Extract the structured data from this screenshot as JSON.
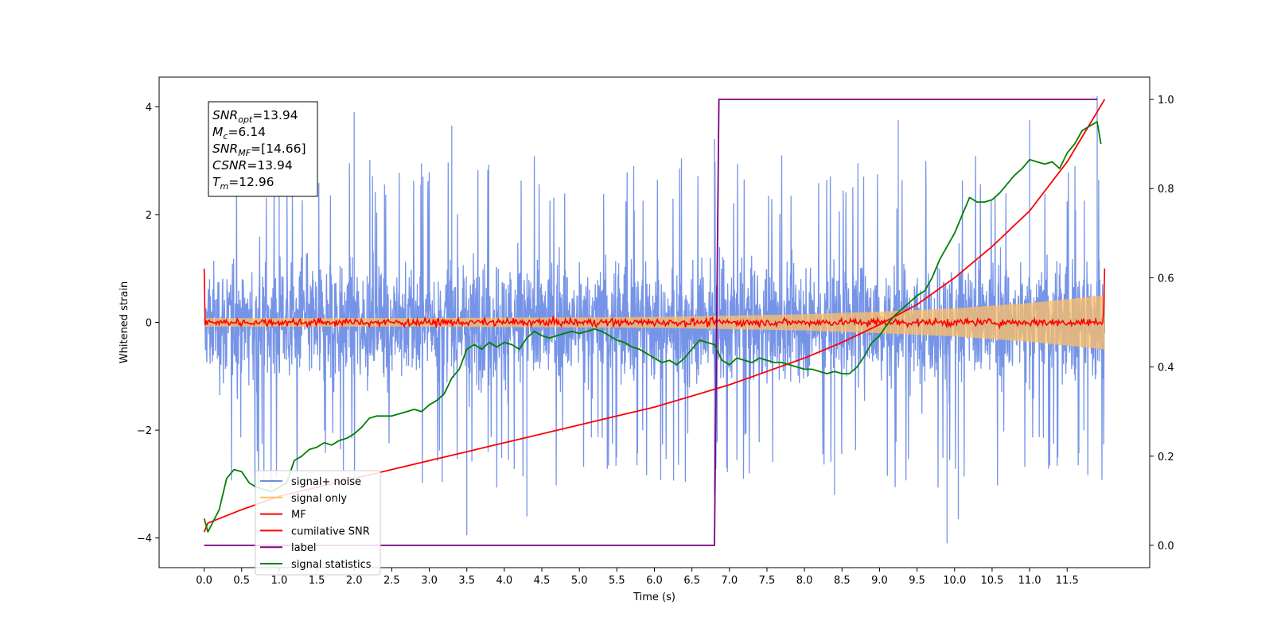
{
  "chart_data": {
    "type": "line",
    "title": "",
    "xlabel": "Time (s)",
    "ylabel": "Whitened strain",
    "y2label": "",
    "xlim": [
      -0.6,
      12.6
    ],
    "ylim": [
      -4.55,
      4.55
    ],
    "y2lim": [
      -0.05,
      1.05
    ],
    "xticks": [
      0.0,
      0.5,
      1.0,
      1.5,
      2.0,
      2.5,
      3.0,
      3.5,
      4.0,
      4.5,
      5.0,
      5.5,
      6.0,
      6.5,
      7.0,
      7.5,
      8.0,
      8.5,
      9.0,
      9.5,
      10.0,
      10.5,
      11.0,
      11.5
    ],
    "xtick_labels": [
      "0.0",
      "0.5",
      "1.0",
      "1.5",
      "2.0",
      "2.5",
      "3.0",
      "3.5",
      "4.0",
      "4.5",
      "5.0",
      "5.5",
      "6.0",
      "6.5",
      "7.0",
      "7.5",
      "8.0",
      "8.5",
      "9.0",
      "9.5",
      "10.0",
      "10.5",
      "11.0",
      "11.5"
    ],
    "yticks": [
      -4,
      -2,
      0,
      2,
      4
    ],
    "ytick_labels": [
      "−4",
      "−2",
      "0",
      "2",
      "4"
    ],
    "y2ticks": [
      0.0,
      0.2,
      0.4,
      0.6,
      0.8,
      1.0
    ],
    "y2tick_labels": [
      "0.0",
      "0.2",
      "0.4",
      "0.6",
      "0.8",
      "1.0"
    ],
    "grid": false,
    "legend_position": "lower-left",
    "annotation": {
      "lines": [
        {
          "sym": "SNR",
          "sub": "opt",
          "value": "=13.94"
        },
        {
          "sym": "M",
          "sub": "c",
          "value": "=6.14"
        },
        {
          "sym": "SNR",
          "sub": "MF",
          "value": "=[14.66]"
        },
        {
          "sym": "CSNR",
          "sub": "",
          "value": "=13.94"
        },
        {
          "sym": "T",
          "sub": "m",
          "value": "=12.96"
        }
      ]
    },
    "series": [
      {
        "name": "signal+ noise",
        "axis": "left",
        "color": "#6f8ee6",
        "kind": "noise-band",
        "x_range": [
          0.0,
          12.0
        ],
        "band": [
          -1.5,
          1.6
        ],
        "peaks_upper": [
          [
            1.0,
            3.3
          ],
          [
            2.0,
            3.9
          ],
          [
            3.3,
            3.65
          ],
          [
            6.8,
            3.4
          ],
          [
            9.25,
            3.75
          ],
          [
            11.0,
            3.75
          ],
          [
            11.9,
            4.2
          ]
        ],
        "peaks_lower": [
          [
            3.5,
            -3.95
          ],
          [
            4.3,
            -3.6
          ],
          [
            6.8,
            -3.2
          ],
          [
            9.9,
            -4.1
          ],
          [
            10.05,
            -3.65
          ],
          [
            8.4,
            -3.2
          ]
        ]
      },
      {
        "name": "signal only",
        "axis": "left",
        "color": "#ffbf66",
        "kind": "chirp-envelope",
        "x_range": [
          0.0,
          12.0
        ],
        "amplitude": [
          [
            0.0,
            0.08
          ],
          [
            3.0,
            0.08
          ],
          [
            6.0,
            0.1
          ],
          [
            8.0,
            0.15
          ],
          [
            9.0,
            0.2
          ],
          [
            10.0,
            0.26
          ],
          [
            11.0,
            0.36
          ],
          [
            12.0,
            0.5
          ]
        ]
      },
      {
        "name": "MF",
        "axis": "left",
        "color": "#ff0000",
        "kind": "noisy-flat",
        "x_range": [
          0.0,
          12.0
        ],
        "center": 0.0,
        "jitter": 0.07,
        "spikes": [
          [
            0.0,
            1.0
          ],
          [
            12.0,
            1.0
          ]
        ]
      },
      {
        "name": "cumilative SNR",
        "axis": "right",
        "color": "#ff0000",
        "x": [
          0.0,
          0.05,
          0.5,
          1.0,
          1.5,
          2.0,
          2.5,
          3.0,
          3.5,
          4.0,
          4.5,
          5.0,
          5.5,
          6.0,
          6.5,
          7.0,
          7.5,
          8.0,
          8.5,
          9.0,
          9.5,
          10.0,
          10.5,
          11.0,
          11.5,
          12.0
        ],
        "values": [
          0.03,
          0.05,
          0.08,
          0.11,
          0.13,
          0.15,
          0.17,
          0.19,
          0.21,
          0.23,
          0.25,
          0.27,
          0.29,
          0.31,
          0.335,
          0.36,
          0.39,
          0.42,
          0.455,
          0.495,
          0.54,
          0.6,
          0.67,
          0.75,
          0.86,
          1.0
        ]
      },
      {
        "name": "label",
        "axis": "right",
        "color": "#800080",
        "x": [
          0.0,
          6.8,
          6.86,
          11.9
        ],
        "values": [
          0.0,
          0.0,
          1.0,
          1.0
        ]
      },
      {
        "name": "signal statistics",
        "axis": "right",
        "color": "#008000",
        "x": [
          0.0,
          0.05,
          0.2,
          0.3,
          0.4,
          0.5,
          0.6,
          0.7,
          0.8,
          0.9,
          1.0,
          1.1,
          1.2,
          1.3,
          1.4,
          1.5,
          1.6,
          1.7,
          1.8,
          1.9,
          2.0,
          2.1,
          2.2,
          2.3,
          2.4,
          2.5,
          2.6,
          2.7,
          2.8,
          2.9,
          3.0,
          3.1,
          3.2,
          3.3,
          3.4,
          3.5,
          3.6,
          3.7,
          3.8,
          3.9,
          4.0,
          4.1,
          4.2,
          4.3,
          4.4,
          4.5,
          4.6,
          4.7,
          4.8,
          4.9,
          5.0,
          5.1,
          5.2,
          5.3,
          5.4,
          5.5,
          5.6,
          5.7,
          5.8,
          5.9,
          6.0,
          6.1,
          6.2,
          6.3,
          6.4,
          6.5,
          6.6,
          6.7,
          6.8,
          6.9,
          7.0,
          7.1,
          7.2,
          7.3,
          7.4,
          7.5,
          7.6,
          7.7,
          7.8,
          7.9,
          8.0,
          8.1,
          8.2,
          8.3,
          8.4,
          8.5,
          8.6,
          8.7,
          8.8,
          8.9,
          9.0,
          9.1,
          9.2,
          9.3,
          9.4,
          9.5,
          9.6,
          9.7,
          9.8,
          9.9,
          10.0,
          10.1,
          10.2,
          10.3,
          10.4,
          10.5,
          10.6,
          10.7,
          10.8,
          10.9,
          11.0,
          11.1,
          11.2,
          11.3,
          11.4,
          11.5,
          11.6,
          11.7,
          11.8,
          11.9,
          11.95
        ],
        "values": [
          0.06,
          0.03,
          0.08,
          0.15,
          0.17,
          0.165,
          0.14,
          0.13,
          0.125,
          0.12,
          0.13,
          0.14,
          0.19,
          0.2,
          0.215,
          0.22,
          0.23,
          0.225,
          0.235,
          0.24,
          0.25,
          0.265,
          0.285,
          0.29,
          0.29,
          0.29,
          0.295,
          0.3,
          0.305,
          0.3,
          0.315,
          0.325,
          0.34,
          0.375,
          0.395,
          0.44,
          0.45,
          0.44,
          0.455,
          0.445,
          0.455,
          0.45,
          0.44,
          0.465,
          0.48,
          0.47,
          0.465,
          0.47,
          0.475,
          0.48,
          0.475,
          0.48,
          0.485,
          0.48,
          0.47,
          0.46,
          0.455,
          0.445,
          0.44,
          0.43,
          0.42,
          0.41,
          0.415,
          0.405,
          0.42,
          0.44,
          0.46,
          0.455,
          0.45,
          0.415,
          0.405,
          0.42,
          0.415,
          0.41,
          0.42,
          0.415,
          0.41,
          0.41,
          0.405,
          0.4,
          0.395,
          0.395,
          0.39,
          0.385,
          0.39,
          0.385,
          0.385,
          0.4,
          0.425,
          0.455,
          0.47,
          0.495,
          0.515,
          0.53,
          0.545,
          0.56,
          0.57,
          0.6,
          0.64,
          0.67,
          0.7,
          0.74,
          0.78,
          0.77,
          0.77,
          0.775,
          0.79,
          0.81,
          0.83,
          0.845,
          0.865,
          0.86,
          0.855,
          0.86,
          0.845,
          0.88,
          0.9,
          0.93,
          0.94,
          0.95,
          0.9
        ]
      }
    ]
  }
}
